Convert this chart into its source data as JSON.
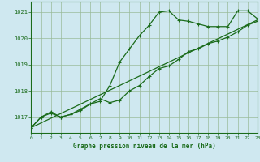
{
  "title": "Graphe pression niveau de la mer (hPa)",
  "bg_color": "#cfe8f0",
  "grid_color": "#99bb99",
  "line_color": "#1a6b1a",
  "x_min": 0,
  "x_max": 23,
  "y_min": 1016.4,
  "y_max": 1021.4,
  "y_ticks": [
    1017,
    1018,
    1019,
    1020,
    1021
  ],
  "x_ticks": [
    0,
    1,
    2,
    3,
    4,
    5,
    6,
    7,
    8,
    9,
    10,
    11,
    12,
    13,
    14,
    15,
    16,
    17,
    18,
    19,
    20,
    21,
    22,
    23
  ],
  "series1_x": [
    0,
    1,
    2,
    3,
    4,
    5,
    6,
    7,
    8,
    9,
    10,
    11,
    12,
    13,
    14,
    15,
    16,
    17,
    18,
    19,
    20,
    21,
    22,
    23
  ],
  "series1_y": [
    1016.6,
    1017.0,
    1017.2,
    1017.0,
    1017.1,
    1017.3,
    1017.5,
    1017.6,
    1018.2,
    1019.1,
    1019.6,
    1020.1,
    1020.5,
    1021.0,
    1021.05,
    1020.7,
    1020.65,
    1020.55,
    1020.45,
    1020.45,
    1020.45,
    1021.05,
    1021.05,
    1020.75
  ],
  "series2_x": [
    0,
    1,
    2,
    3,
    4,
    5,
    6,
    7,
    8,
    9,
    10,
    11,
    12,
    13,
    14,
    15,
    16,
    17,
    18,
    19,
    20,
    21,
    22,
    23
  ],
  "series2_y": [
    1016.6,
    1017.0,
    1017.15,
    1017.0,
    1017.1,
    1017.25,
    1017.5,
    1017.7,
    1017.55,
    1017.65,
    1018.0,
    1018.2,
    1018.55,
    1018.85,
    1018.95,
    1019.2,
    1019.5,
    1019.6,
    1019.8,
    1019.9,
    1020.05,
    1020.25,
    1020.5,
    1020.65
  ],
  "trend_x": [
    0,
    23
  ],
  "trend_y": [
    1016.6,
    1020.7
  ]
}
